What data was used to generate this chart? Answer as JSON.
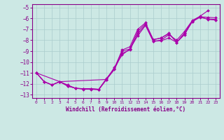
{
  "xlabel": "Windchill (Refroidissement éolien,°C)",
  "background_color": "#cce8e4",
  "grid_color": "#aacccc",
  "line_color": "#aa00aa",
  "marker": "D",
  "markersize": 2.0,
  "linewidth": 0.8,
  "xlim": [
    -0.5,
    23.5
  ],
  "ylim": [
    -13.3,
    -4.7
  ],
  "yticks": [
    -13,
    -12,
    -11,
    -10,
    -9,
    -8,
    -7,
    -6,
    -5
  ],
  "xticks": [
    0,
    1,
    2,
    3,
    4,
    5,
    6,
    7,
    8,
    9,
    10,
    11,
    12,
    13,
    14,
    15,
    16,
    17,
    18,
    19,
    20,
    21,
    22,
    23
  ],
  "series": [
    {
      "x": [
        0,
        1,
        2,
        3,
        4,
        5,
        6,
        7,
        8,
        9,
        10,
        11,
        12,
        13,
        14,
        15,
        16,
        17,
        18,
        19,
        20,
        21,
        22
      ],
      "y": [
        -11.0,
        -11.8,
        -12.1,
        -11.8,
        -12.1,
        -12.4,
        -12.45,
        -12.45,
        -12.5,
        -11.6,
        -10.7,
        -9.2,
        -8.9,
        -7.4,
        -6.6,
        -8.1,
        -8.0,
        -7.5,
        -8.0,
        -7.2,
        -6.2,
        -5.8,
        -5.3
      ]
    },
    {
      "x": [
        0,
        1,
        2,
        3,
        4,
        5,
        6,
        7,
        8,
        9,
        10,
        11,
        12,
        13,
        14,
        15,
        16,
        17,
        18,
        19,
        20,
        21,
        22,
        23
      ],
      "y": [
        -11.0,
        -11.8,
        -12.1,
        -11.8,
        -12.2,
        -12.4,
        -12.45,
        -12.45,
        -12.5,
        -11.5,
        -10.6,
        -9.0,
        -8.8,
        -7.2,
        -6.5,
        -7.95,
        -7.8,
        -7.4,
        -8.2,
        -7.4,
        -6.3,
        -5.9,
        -6.05,
        -6.1
      ]
    },
    {
      "x": [
        0,
        1,
        2,
        3,
        4,
        5,
        6,
        7,
        8,
        9,
        10,
        11,
        12,
        13,
        14,
        15,
        16,
        17,
        18,
        19,
        20,
        21,
        22,
        23
      ],
      "y": [
        -11.0,
        -11.8,
        -12.1,
        -11.8,
        -12.2,
        -12.4,
        -12.5,
        -12.5,
        -12.55,
        -11.6,
        -10.6,
        -8.9,
        -8.6,
        -7.0,
        -6.4,
        -7.95,
        -7.8,
        -7.35,
        -8.2,
        -7.35,
        -6.25,
        -5.85,
        -6.1,
        -6.15
      ]
    },
    {
      "x": [
        0,
        3,
        9,
        10,
        11,
        12,
        13,
        14,
        15,
        16,
        17,
        18,
        19,
        20,
        21,
        22,
        23
      ],
      "y": [
        -11.0,
        -11.8,
        -11.6,
        -10.5,
        -9.35,
        -8.8,
        -7.6,
        -6.65,
        -8.1,
        -8.05,
        -7.8,
        -8.2,
        -7.5,
        -6.3,
        -5.85,
        -5.9,
        -5.95
      ]
    }
  ]
}
